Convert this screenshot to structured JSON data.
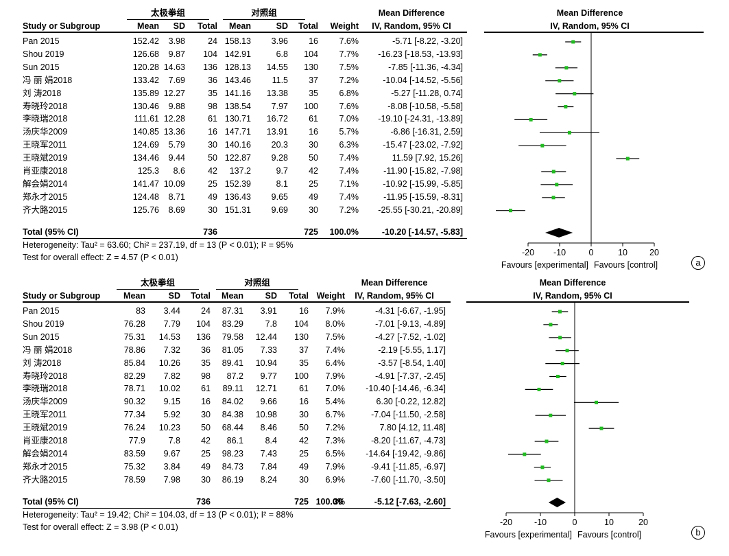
{
  "chart_data": [
    {
      "type": "forest",
      "panel_label": "a",
      "group_headers": {
        "experimental": "太极拳组",
        "control": "对照组"
      },
      "columns": {
        "study": "Study or Subgroup",
        "mean": "Mean",
        "sd": "SD",
        "total": "Total",
        "weight": "Weight",
        "ci": "IV, Random, 95% CI"
      },
      "effect_header": "Mean Difference",
      "plot_header": "Mean Difference",
      "plot_subheader": "IV, Random, 95% CI",
      "studies": [
        {
          "name": "Pan 2015",
          "e_mean": "152.42",
          "e_sd": "3.98",
          "e_total": "24",
          "c_mean": "158.13",
          "c_sd": "3.96",
          "c_total": "16",
          "weight": "7.6%",
          "ci_text": "-5.71 [-8.22, -3.20]",
          "md": -5.71,
          "lo": -8.22,
          "hi": -3.2
        },
        {
          "name": "Shou 2019",
          "e_mean": "126.68",
          "e_sd": "9.87",
          "e_total": "104",
          "c_mean": "142.91",
          "c_sd": "6.8",
          "c_total": "104",
          "weight": "7.7%",
          "ci_text": "-16.23 [-18.53, -13.93]",
          "md": -16.23,
          "lo": -18.53,
          "hi": -13.93
        },
        {
          "name": "Sun 2015",
          "e_mean": "120.28",
          "e_sd": "14.63",
          "e_total": "136",
          "c_mean": "128.13",
          "c_sd": "14.55",
          "c_total": "130",
          "weight": "7.5%",
          "ci_text": "-7.85 [-11.36, -4.34]",
          "md": -7.85,
          "lo": -11.36,
          "hi": -4.34
        },
        {
          "name": "冯 丽 娟2018",
          "e_mean": "133.42",
          "e_sd": "7.69",
          "e_total": "36",
          "c_mean": "143.46",
          "c_sd": "11.5",
          "c_total": "37",
          "weight": "7.2%",
          "ci_text": "-10.04 [-14.52, -5.56]",
          "md": -10.04,
          "lo": -14.52,
          "hi": -5.56
        },
        {
          "name": "刘 涛2018",
          "e_mean": "135.89",
          "e_sd": "12.27",
          "e_total": "35",
          "c_mean": "141.16",
          "c_sd": "13.38",
          "c_total": "35",
          "weight": "6.8%",
          "ci_text": "-5.27 [-11.28, 0.74]",
          "md": -5.27,
          "lo": -11.28,
          "hi": 0.74
        },
        {
          "name": "寿晓玲2018",
          "e_mean": "130.46",
          "e_sd": "9.88",
          "e_total": "98",
          "c_mean": "138.54",
          "c_sd": "7.97",
          "c_total": "100",
          "weight": "7.6%",
          "ci_text": "-8.08 [-10.58, -5.58]",
          "md": -8.08,
          "lo": -10.58,
          "hi": -5.58
        },
        {
          "name": "李晓瑞2018",
          "e_mean": "111.61",
          "e_sd": "12.28",
          "e_total": "61",
          "c_mean": "130.71",
          "c_sd": "16.72",
          "c_total": "61",
          "weight": "7.0%",
          "ci_text": "-19.10 [-24.31, -13.89]",
          "md": -19.1,
          "lo": -24.31,
          "hi": -13.89
        },
        {
          "name": "汤庆华2009",
          "e_mean": "140.85",
          "e_sd": "13.36",
          "e_total": "16",
          "c_mean": "147.71",
          "c_sd": "13.91",
          "c_total": "16",
          "weight": "5.7%",
          "ci_text": "-6.86 [-16.31, 2.59]",
          "md": -6.86,
          "lo": -16.31,
          "hi": 2.59
        },
        {
          "name": "王晓军2011",
          "e_mean": "124.69",
          "e_sd": "5.79",
          "e_total": "30",
          "c_mean": "140.16",
          "c_sd": "20.3",
          "c_total": "30",
          "weight": "6.3%",
          "ci_text": "-15.47 [-23.02, -7.92]",
          "md": -15.47,
          "lo": -23.02,
          "hi": -7.92
        },
        {
          "name": "王晓斌2019",
          "e_mean": "134.46",
          "e_sd": "9.44",
          "e_total": "50",
          "c_mean": "122.87",
          "c_sd": "9.28",
          "c_total": "50",
          "weight": "7.4%",
          "ci_text": "11.59 [7.92, 15.26]",
          "md": 11.59,
          "lo": 7.92,
          "hi": 15.26
        },
        {
          "name": "肖亚康2018",
          "e_mean": "125.3",
          "e_sd": "8.6",
          "e_total": "42",
          "c_mean": "137.2",
          "c_sd": "9.7",
          "c_total": "42",
          "weight": "7.4%",
          "ci_text": "-11.90 [-15.82, -7.98]",
          "md": -11.9,
          "lo": -15.82,
          "hi": -7.98
        },
        {
          "name": "解会娟2014",
          "e_mean": "141.47",
          "e_sd": "10.09",
          "e_total": "25",
          "c_mean": "152.39",
          "c_sd": "8.1",
          "c_total": "25",
          "weight": "7.1%",
          "ci_text": "-10.92 [-15.99, -5.85]",
          "md": -10.92,
          "lo": -15.99,
          "hi": -5.85
        },
        {
          "name": "郑永才2015",
          "e_mean": "124.48",
          "e_sd": "8.71",
          "e_total": "49",
          "c_mean": "136.43",
          "c_sd": "9.65",
          "c_total": "49",
          "weight": "7.4%",
          "ci_text": "-11.95 [-15.59, -8.31]",
          "md": -11.95,
          "lo": -15.59,
          "hi": -8.31
        },
        {
          "name": "齐大路2015",
          "e_mean": "125.76",
          "e_sd": "8.69",
          "e_total": "30",
          "c_mean": "151.31",
          "c_sd": "9.69",
          "c_total": "30",
          "weight": "7.2%",
          "ci_text": "-25.55 [-30.21, -20.89]",
          "md": -25.55,
          "lo": -30.21,
          "hi": -20.89
        }
      ],
      "total": {
        "label": "Total (95% CI)",
        "e_total": "736",
        "c_total": "725",
        "c_mean_extra": "",
        "weight": "100.0%",
        "ci_text": "-10.20 [-14.57, -5.83]",
        "md": -10.2,
        "lo": -14.57,
        "hi": -5.83
      },
      "heterogeneity": "Heterogeneity: Tau² = 63.60; Chi² = 237.19, df = 13 (P < 0.01); I² = 95%",
      "overall_effect": "Test for overall effect: Z = 4.57 (P < 0.01)",
      "xlim": [
        -30,
        30
      ],
      "xticks": [
        -20,
        -10,
        0,
        10,
        20
      ],
      "xtick_labels": [
        "-20",
        "-10",
        "0",
        "10",
        "20"
      ],
      "favours_left": "Favours [experimental]",
      "favours_right": "Favours [control]",
      "point_color": "#22bb22"
    },
    {
      "type": "forest",
      "panel_label": "b",
      "group_headers": {
        "experimental": "太极拳组",
        "control": "对照组"
      },
      "columns": {
        "study": "Study or Subgroup",
        "mean": "Mean",
        "sd": "SD",
        "total": "Total",
        "weight": "Weight",
        "ci": "IV, Random, 95% CI"
      },
      "effect_header": "Mean Difference",
      "plot_header": "Mean Difference",
      "plot_subheader": "IV, Random, 95% CI",
      "studies": [
        {
          "name": "Pan 2015",
          "e_mean": "83",
          "e_sd": "3.44",
          "e_total": "24",
          "c_mean": "87.31",
          "c_sd": "3.91",
          "c_total": "16",
          "weight": "7.9%",
          "ci_text": "-4.31 [-6.67, -1.95]",
          "md": -4.31,
          "lo": -6.67,
          "hi": -1.95
        },
        {
          "name": "Shou 2019",
          "e_mean": "76.28",
          "e_sd": "7.79",
          "e_total": "104",
          "c_mean": "83.29",
          "c_sd": "7.8",
          "c_total": "104",
          "weight": "8.0%",
          "ci_text": "-7.01 [-9.13, -4.89]",
          "md": -7.01,
          "lo": -9.13,
          "hi": -4.89
        },
        {
          "name": "Sun 2015",
          "e_mean": "75.31",
          "e_sd": "14.53",
          "e_total": "136",
          "c_mean": "79.58",
          "c_sd": "12.44",
          "c_total": "130",
          "weight": "7.5%",
          "ci_text": "-4.27 [-7.52, -1.02]",
          "md": -4.27,
          "lo": -7.52,
          "hi": -1.02
        },
        {
          "name": "冯 丽 娟2018",
          "e_mean": "78.86",
          "e_sd": "7.32",
          "e_total": "36",
          "c_mean": "81.05",
          "c_sd": "7.33",
          "c_total": "37",
          "weight": "7.4%",
          "ci_text": "-2.19 [-5.55, 1.17]",
          "md": -2.19,
          "lo": -5.55,
          "hi": 1.17
        },
        {
          "name": "刘 涛2018",
          "e_mean": "85.84",
          "e_sd": "10.26",
          "e_total": "35",
          "c_mean": "89.41",
          "c_sd": "10.94",
          "c_total": "35",
          "weight": "6.4%",
          "ci_text": "-3.57 [-8.54, 1.40]",
          "md": -3.57,
          "lo": -8.54,
          "hi": 1.4
        },
        {
          "name": "寿晓玲2018",
          "e_mean": "82.29",
          "e_sd": "7.82",
          "e_total": "98",
          "c_mean": "87.2",
          "c_sd": "9.77",
          "c_total": "100",
          "weight": "7.9%",
          "ci_text": "-4.91 [-7.37, -2.45]",
          "md": -4.91,
          "lo": -7.37,
          "hi": -2.45
        },
        {
          "name": "李晓瑞2018",
          "e_mean": "78.71",
          "e_sd": "10.02",
          "e_total": "61",
          "c_mean": "89.11",
          "c_sd": "12.71",
          "c_total": "61",
          "weight": "7.0%",
          "ci_text": "-10.40 [-14.46, -6.34]",
          "md": -10.4,
          "lo": -14.46,
          "hi": -6.34
        },
        {
          "name": "汤庆华2009",
          "e_mean": "90.32",
          "e_sd": "9.15",
          "e_total": "16",
          "c_mean": "84.02",
          "c_sd": "9.66",
          "c_total": "16",
          "weight": "5.4%",
          "ci_text": "6.30 [-0.22, 12.82]",
          "md": 6.3,
          "lo": -0.22,
          "hi": 12.82
        },
        {
          "name": "王晓军2011",
          "e_mean": "77.34",
          "e_sd": "5.92",
          "e_total": "30",
          "c_mean": "84.38",
          "c_sd": "10.98",
          "c_total": "30",
          "weight": "6.7%",
          "ci_text": "-7.04 [-11.50, -2.58]",
          "md": -7.04,
          "lo": -11.5,
          "hi": -2.58
        },
        {
          "name": "王晓斌2019",
          "e_mean": "76.24",
          "e_sd": "10.23",
          "e_total": "50",
          "c_mean": "68.44",
          "c_sd": "8.46",
          "c_total": "50",
          "weight": "7.2%",
          "ci_text": "7.80 [4.12, 11.48]",
          "md": 7.8,
          "lo": 4.12,
          "hi": 11.48
        },
        {
          "name": "肖亚康2018",
          "e_mean": "77.9",
          "e_sd": "7.8",
          "e_total": "42",
          "c_mean": "86.1",
          "c_sd": "8.4",
          "c_total": "42",
          "weight": "7.3%",
          "ci_text": "-8.20 [-11.67, -4.73]",
          "md": -8.2,
          "lo": -11.67,
          "hi": -4.73
        },
        {
          "name": "解会娟2014",
          "e_mean": "83.59",
          "e_sd": "9.67",
          "e_total": "25",
          "c_mean": "98.23",
          "c_sd": "7.43",
          "c_total": "25",
          "weight": "6.5%",
          "ci_text": "-14.64 [-19.42, -9.86]",
          "md": -14.64,
          "lo": -19.42,
          "hi": -9.86
        },
        {
          "name": "郑永才2015",
          "e_mean": "75.32",
          "e_sd": "3.84",
          "e_total": "49",
          "c_mean": "84.73",
          "c_sd": "7.84",
          "c_total": "49",
          "weight": "7.9%",
          "ci_text": "-9.41 [-11.85, -6.97]",
          "md": -9.41,
          "lo": -11.85,
          "hi": -6.97
        },
        {
          "name": "齐大路2015",
          "e_mean": "78.59",
          "e_sd": "7.98",
          "e_total": "30",
          "c_mean": "86.19",
          "c_sd": "8.24",
          "c_total": "30",
          "weight": "6.9%",
          "ci_text": "-7.60 [-11.70, -3.50]",
          "md": -7.6,
          "lo": -11.7,
          "hi": -3.5
        }
      ],
      "total": {
        "label": "Total (95% CI)",
        "e_total": "736",
        "c_total": "725",
        "c_mean_extra": "30",
        "weight": "100.0%",
        "ci_text": "-5.12 [-7.63, -2.60]",
        "md": -5.12,
        "lo": -7.63,
        "hi": -2.6
      },
      "heterogeneity": "Heterogeneity: Tau² = 19.42; Chi² = 104.03, df = 13 (P < 0.01); I² = 88%",
      "overall_effect": "Test for overall effect: Z = 3.98 (P < 0.01)",
      "xlim": [
        -20,
        30
      ],
      "xticks": [
        -20,
        -10,
        0,
        10,
        20
      ],
      "xtick_labels": [
        "-20",
        "-10",
        "0",
        "10",
        "20"
      ],
      "favours_left": "Favours [experimental]",
      "favours_right": "Favours [control]",
      "point_color": "#22bb22"
    }
  ]
}
